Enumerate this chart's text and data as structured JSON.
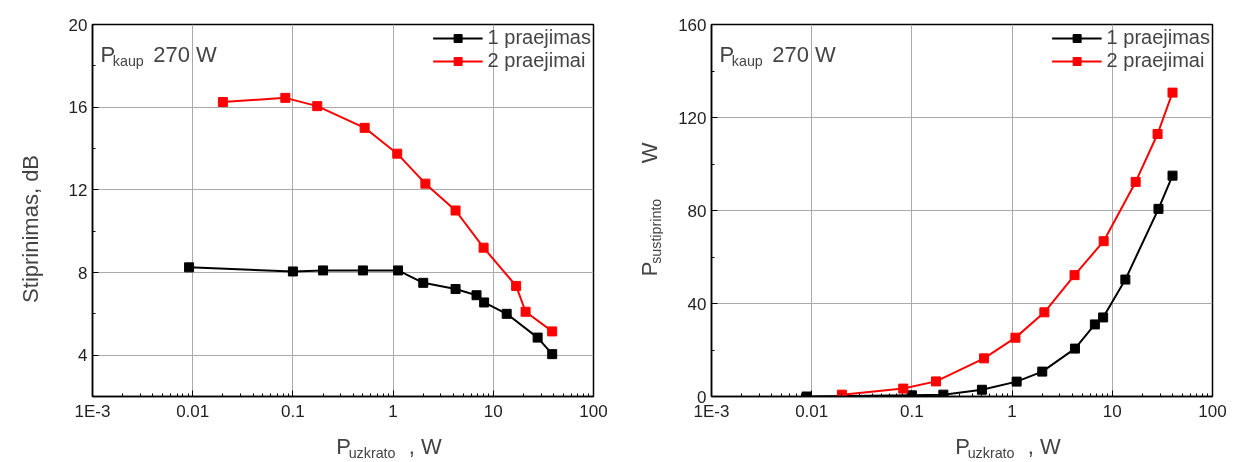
{
  "chart_data": [
    {
      "type": "line",
      "annotations": [
        "P$_{kaup}$ 270 W"
      ],
      "xlabel": "P$_{uzkrato}$, W",
      "ylabel": "Stiprinimas, dB",
      "log": "x",
      "xlim": [
        0.001,
        100
      ],
      "ylim": [
        2,
        20
      ],
      "xticks": [
        {
          "value": 0.001,
          "label": "1E-3"
        },
        0.01,
        0.1,
        1,
        10,
        100
      ],
      "yticks": [
        4,
        8,
        12,
        16,
        20
      ],
      "grid": true,
      "legend": "top right",
      "marker": "square",
      "line_style": "solid",
      "series": [
        {
          "name": "1 praejimas",
          "color": "#000000",
          "x": [
            0.0092,
            0.1,
            0.2,
            0.5,
            1.12,
            2.0,
            4.2,
            6.8,
            8.1,
            13.6,
            27.7,
            38.7
          ],
          "values": [
            8.25,
            8.05,
            8.1,
            8.1,
            8.1,
            7.5,
            7.2,
            6.9,
            6.55,
            6.0,
            4.85,
            4.05
          ]
        },
        {
          "name": "2 praejimai",
          "color": "#ff0000",
          "x": [
            0.02,
            0.084,
            0.175,
            0.52,
            1.1,
            2.1,
            4.2,
            8.0,
            16.9,
            21,
            38.7
          ],
          "values": [
            16.25,
            16.45,
            16.05,
            15.0,
            13.75,
            12.3,
            11.0,
            9.2,
            7.35,
            6.1,
            5.15
          ]
        }
      ]
    },
    {
      "type": "line",
      "annotations": [
        "P$_{kaup}$ 270 W"
      ],
      "xlabel": "P$_{uzkrato}$, W",
      "ylabel": "P$_{sustiprinto}$ W",
      "log": "x",
      "xlim": [
        0.001,
        100
      ],
      "ylim": [
        0,
        160
      ],
      "xticks": [
        {
          "value": 0.001,
          "label": "1E-3"
        },
        0.01,
        0.1,
        1,
        10,
        100
      ],
      "yticks": [
        0,
        40,
        80,
        120,
        160
      ],
      "grid": true,
      "legend": "top right",
      "marker": "square",
      "line_style": "solid",
      "series": [
        {
          "name": "1 praejimas",
          "color": "#000000",
          "x": [
            0.0089,
            0.1,
            0.206,
            0.5,
            1.11,
            2.0,
            4.24,
            6.7,
            8.1,
            13.5,
            28.9,
            39.9
          ],
          "values": [
            0,
            0.5,
            0.8,
            2.9,
            6.4,
            10.7,
            20.6,
            31,
            34,
            50.3,
            80.7,
            95
          ]
        },
        {
          "name": "2 praejimai",
          "color": "#ff0000",
          "x": [
            0.02,
            0.082,
            0.174,
            0.525,
            1.08,
            2.1,
            4.2,
            8.2,
            17.1,
            28.3,
            39.9
          ],
          "values": [
            0.8,
            3.4,
            6.5,
            16.4,
            25.3,
            36.2,
            52.2,
            66.8,
            92.3,
            112.9,
            130.7
          ]
        }
      ]
    }
  ]
}
